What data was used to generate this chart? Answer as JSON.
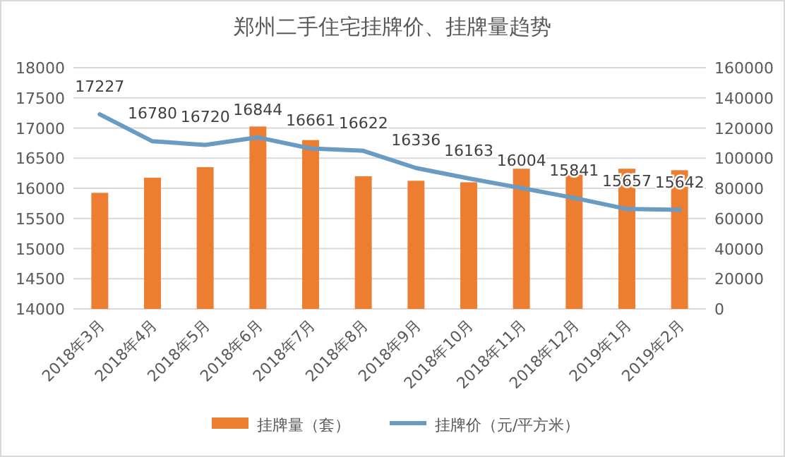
{
  "chart_data": {
    "type": "bar",
    "title": "郑州二手住宅挂牌价、挂牌量趋势",
    "categories": [
      "2018年3月",
      "2018年4月",
      "2018年5月",
      "2018年6月",
      "2018年7月",
      "2018年8月",
      "2018年9月",
      "2018年10月",
      "2018年11月",
      "2018年12月",
      "2019年1月",
      "2019年2月"
    ],
    "series": [
      {
        "name": "挂牌量（套）",
        "axis": "y2",
        "color": "#ed7d31",
        "values": [
          77000,
          87000,
          94000,
          121000,
          112000,
          88000,
          85000,
          84000,
          93000,
          91000,
          93000,
          92000
        ]
      },
      {
        "name": "挂牌价（元/平方米）",
        "type": "line",
        "color": "#6a9bc3",
        "values": [
          17227,
          16780,
          16720,
          16844,
          16661,
          16622,
          16336,
          16163,
          16004,
          15841,
          15657,
          15642
        ],
        "value_labels": [
          "17227",
          "16780",
          "16720",
          "16844",
          "16661",
          "16622",
          "16336",
          "16163",
          "16004",
          "15841",
          "15657",
          "15642"
        ]
      }
    ],
    "ylim": [
      14000,
      18000
    ],
    "yticks": [
      14000,
      14500,
      15000,
      15500,
      16000,
      16500,
      17000,
      17500,
      18000
    ],
    "y2lim": [
      0,
      160000
    ],
    "y2ticks": [
      0,
      20000,
      40000,
      60000,
      80000,
      100000,
      120000,
      140000,
      160000
    ],
    "grid": "y",
    "legend": "bottom"
  }
}
